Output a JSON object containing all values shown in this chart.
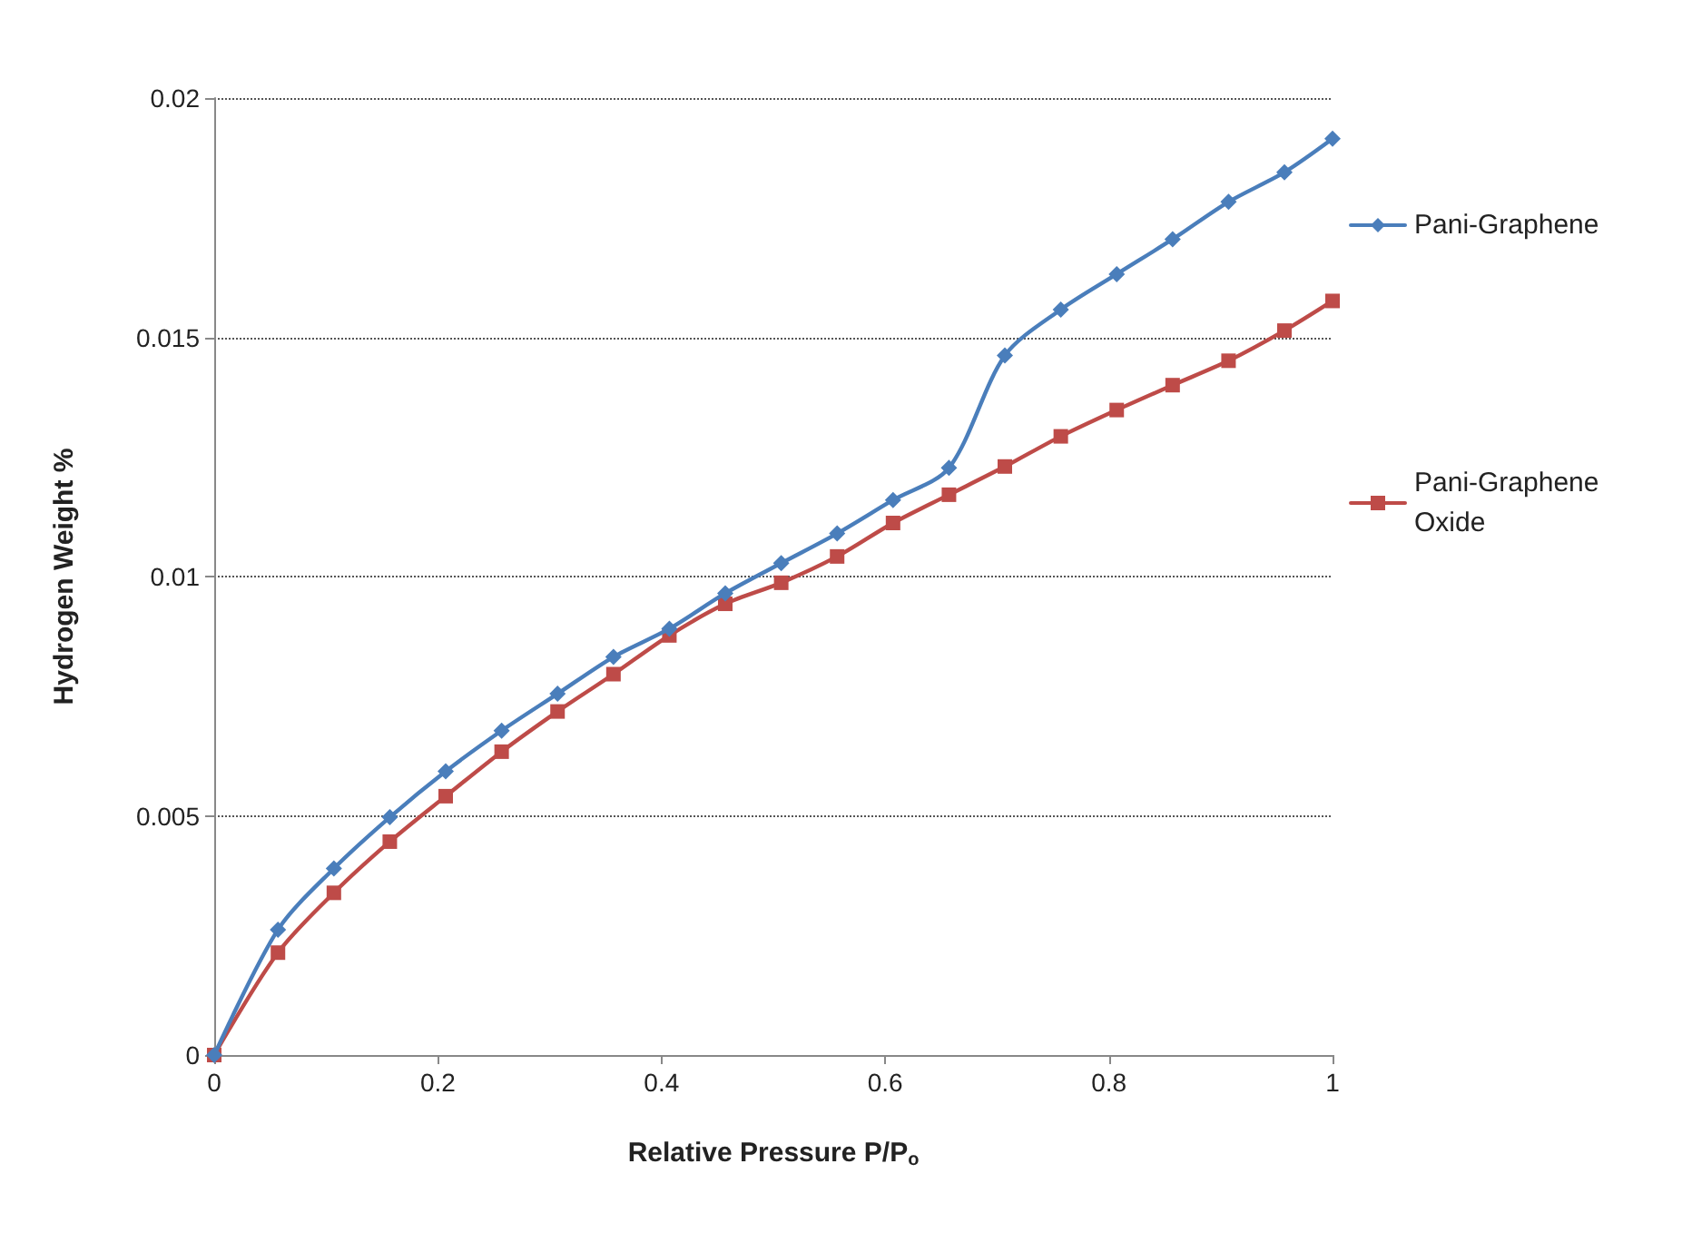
{
  "chart_data": {
    "type": "line",
    "xlabel": "Relative Pressure P/P$_{o}$",
    "ylabel": "Hydrogen Weight %",
    "x": [
      0,
      0.057,
      0.107,
      0.157,
      0.207,
      0.257,
      0.307,
      0.357,
      0.407,
      0.457,
      0.507,
      0.557,
      0.607,
      0.657,
      0.707,
      0.757,
      0.807,
      0.857,
      0.907,
      0.957,
      1.0
    ],
    "series": [
      {
        "name": "Pani-Graphene",
        "color": "#4a7ebb",
        "marker": "diamond",
        "values": [
          0,
          0.00262,
          0.0039,
          0.00497,
          0.00593,
          0.00678,
          0.00755,
          0.00832,
          0.00891,
          0.00965,
          0.01028,
          0.0109,
          0.0116,
          0.01227,
          0.01462,
          0.01558,
          0.01632,
          0.01705,
          0.01783,
          0.01845,
          0.01915
        ]
      },
      {
        "name": "Pani-Graphene Oxide",
        "color": "#be4b48",
        "marker": "square",
        "values": [
          0,
          0.00214,
          0.00339,
          0.00446,
          0.00541,
          0.00634,
          0.00718,
          0.00796,
          0.00877,
          0.00943,
          0.00987,
          0.01042,
          0.01112,
          0.01171,
          0.0123,
          0.01293,
          0.01348,
          0.014,
          0.01451,
          0.01514,
          0.01576
        ]
      }
    ],
    "xlim": [
      0,
      1
    ],
    "xticks": [
      0,
      0.2,
      0.4,
      0.6,
      0.8,
      1
    ],
    "ylim": [
      0,
      0.02
    ],
    "yticks": [
      0,
      0.005,
      0.01,
      0.015,
      0.02
    ],
    "grid": "y",
    "legend": "right",
    "line_style": "solid"
  }
}
